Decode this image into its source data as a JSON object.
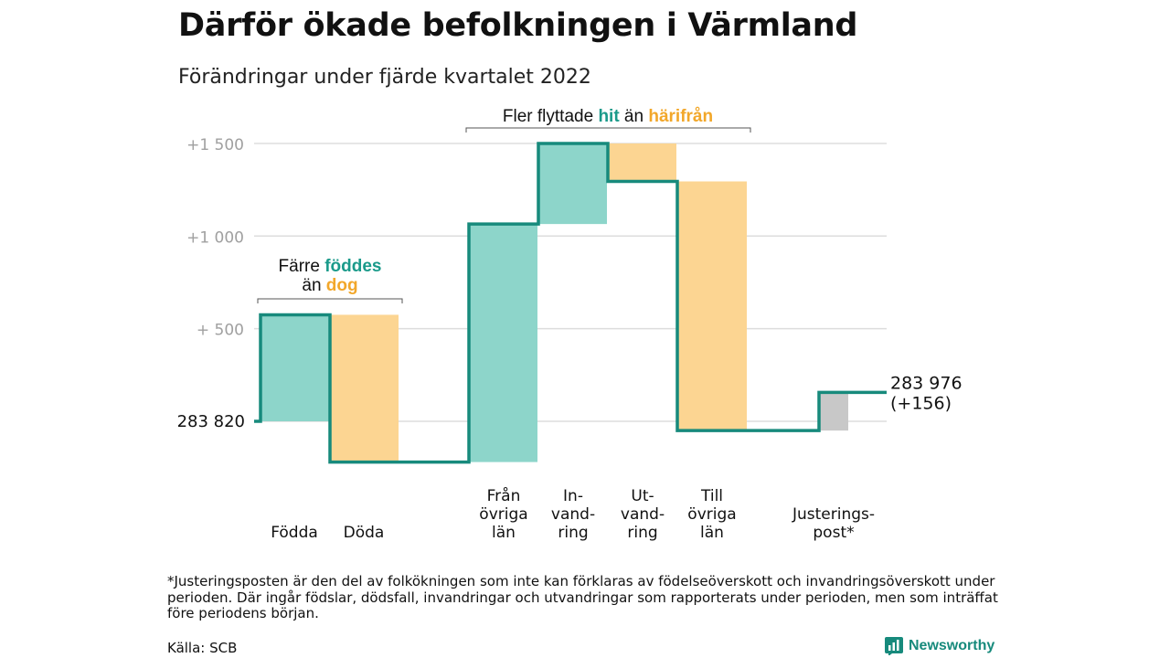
{
  "title": "Därför ökade befolkningen i Värmland",
  "subtitle": "Förändringar under fjärde kvartalet 2022",
  "colors": {
    "increase": "#8dd5ca",
    "decrease": "#fcd592",
    "adjustment": "#c8c8c8",
    "line": "#178a7c",
    "teal_text": "#1a9a8a",
    "orange_text": "#f2a72a",
    "tick_text": "#a0a0a0"
  },
  "chart_data": {
    "type": "waterfall",
    "baseline_label": "283 820",
    "end_label": [
      "283 976",
      "(+156)"
    ],
    "y_ticks": [
      {
        "value": 0,
        "label": ""
      },
      {
        "value": 500,
        "label": "+ 500"
      },
      {
        "value": 1000,
        "label": "+1 000"
      },
      {
        "value": 1500,
        "label": "+1 500"
      }
    ],
    "steps": [
      {
        "label": [
          "Födda"
        ],
        "start": 0,
        "end": 575,
        "kind": "increase"
      },
      {
        "label": [
          "Döda"
        ],
        "start": 575,
        "end": -220,
        "kind": "decrease"
      },
      {
        "label": [
          "Från",
          "övriga",
          "län"
        ],
        "start": -220,
        "end": 1065,
        "kind": "increase"
      },
      {
        "label": [
          "In-",
          "vand-",
          "ring"
        ],
        "start": 1065,
        "end": 1500,
        "kind": "increase"
      },
      {
        "label": [
          "Ut-",
          "vand-",
          "ring"
        ],
        "start": 1500,
        "end": 1295,
        "kind": "decrease"
      },
      {
        "label": [
          "Till",
          "övriga",
          "län"
        ],
        "start": 1295,
        "end": -50,
        "kind": "decrease"
      },
      {
        "label": [
          "Justerings-",
          "post*"
        ],
        "start": -50,
        "end": 156,
        "kind": "adjustment"
      }
    ],
    "annotations": [
      {
        "lines": [
          [
            {
              "text": "Färre ",
              "style": "plain"
            },
            {
              "text": "föddes",
              "style": "teal"
            }
          ],
          [
            {
              "text": "än ",
              "style": "plain"
            },
            {
              "text": "dog",
              "style": "orange"
            }
          ]
        ]
      },
      {
        "lines": [
          [
            {
              "text": "Fler flyttade ",
              "style": "plain"
            },
            {
              "text": "hit",
              "style": "teal"
            },
            {
              "text": " än ",
              "style": "plain"
            },
            {
              "text": "härifrån",
              "style": "orange"
            }
          ]
        ]
      }
    ]
  },
  "footnote": "*Justeringsposten är den del av folkökningen som inte kan förklaras av födelseöverskott och invandringsöverskott under perioden. Där ingår födslar, dödsfall, invandringar och utvandringar som rapporterats under perioden, men som inträffat före periodens början.",
  "source": "Källa: SCB",
  "brand": "Newsworthy"
}
